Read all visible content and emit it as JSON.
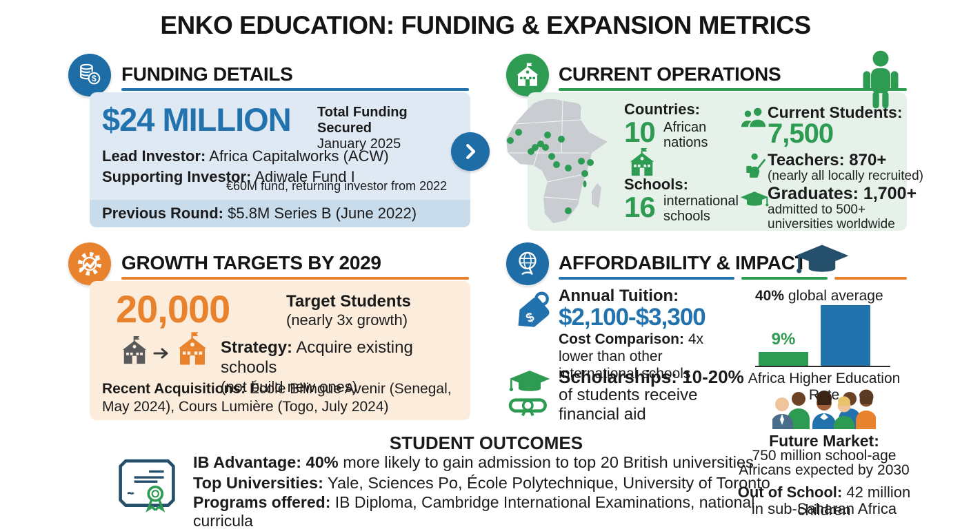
{
  "title": "ENKO EDUCATION: FUNDING & EXPANSION METRICS",
  "funding": {
    "heading": "FUNDING DETAILS",
    "amount": "$24 MILLION",
    "amount_caption_line1": "Total Funding Secured",
    "amount_caption_line2": "January 2025",
    "lead_label": "Lead Investor:",
    "lead_value": " Africa Capitalworks (ACW)",
    "supporting_label": "Supporting Investor:",
    "supporting_value": " Adiwale Fund I",
    "supporting_note": "€60M fund, returning investor from 2022",
    "previous_label": "Previous Round:",
    "previous_value": " $5.8M Series B (June 2022)"
  },
  "operations": {
    "heading": "CURRENT OPERATIONS",
    "countries_label": "Countries:",
    "countries_value": "10",
    "countries_caption": "African nations",
    "schools_label": "Schools:",
    "schools_value": "16",
    "schools_caption": "international schools",
    "students_label": "Current Students:",
    "students_value": "7,500",
    "teachers_label": "Teachers: 870+",
    "teachers_caption": "(nearly all locally recruited)",
    "graduates_label": "Graduates: 1,700+",
    "graduates_caption": "admitted to 500+ universities worldwide"
  },
  "growth": {
    "heading": "GROWTH TARGETS BY 2029",
    "target_value": "20,000",
    "target_label": "Target Students",
    "target_caption": "(nearly 3x growth)",
    "strategy_label": "Strategy:",
    "strategy_value": " Acquire existing schools",
    "strategy_caption": "(not build new ones)",
    "acquisitions_label": "Recent Acquisitions:",
    "acquisitions_value": " École Bilingue Avenir (Senegal, May 2024), Cours Lumière (Togo, July 2024)"
  },
  "affordability": {
    "heading": "AFFORDABILITY & IMPACT",
    "tuition_label": "Annual Tuition:",
    "tuition_value": "$2,100-$3,300",
    "cost_label": "Cost Comparison:",
    "cost_value": " 4x lower than other international schools",
    "scholarships_label": "Scholarships: 10-20%",
    "scholarships_caption": "of students receive financial aid",
    "future_label": "Future Market:",
    "future_line1": "750 million school-age",
    "future_line2": "Africans expected by 2030",
    "outofschool_label": "Out of School:",
    "outofschool_value": " 42 million children",
    "outofschool_line2": "in sub-Saharan Africa"
  },
  "chart_data": {
    "type": "bar",
    "categories": [
      "Africa",
      "Global average"
    ],
    "values": [
      9,
      40
    ],
    "bar_labels": [
      "9%",
      "40%"
    ],
    "top_label_bold": "40%",
    "top_label_rest": " global average",
    "xlabel": "Africa Higher Education Rate",
    "ylim": [
      0,
      40
    ],
    "colors": [
      "#2d9b51",
      "#2272ae"
    ],
    "grid": false,
    "legend": "none"
  },
  "outcomes": {
    "heading": "STUDENT OUTCOMES",
    "ib_label": "IB Advantage: 40%",
    "ib_value": " more likely to gain admission to top 20 British universities",
    "universities_label": "Top Universities:",
    "universities_value": " Yale, Sciences Po, École Polytechnique, University of Toronto",
    "programs_label": "Programs offered:",
    "programs_value": " IB Diploma, Cambridge International Examinations, national curricula"
  },
  "icons": [
    "coins-icon",
    "chevron-right-icon",
    "school-icon",
    "student-backpack-icon",
    "people-icon",
    "teacher-icon",
    "graduation-cap-icon",
    "gear-growth-icon",
    "globe-icon",
    "price-tag-icon",
    "scholarship-icon",
    "certificate-icon",
    "africa-map",
    "students-group-icon",
    "arrow-right-icon"
  ],
  "colors": {
    "blue": "#2272ae",
    "icon_blue": "#1e6da6",
    "navy": "#254f6b",
    "green": "#2d9b51",
    "orange": "#e9822c",
    "panel_blue": "#dfe9f4",
    "panel_blue_dark": "#c9dcec",
    "panel_green": "#e6f1ea",
    "panel_orange": "#fcecdc",
    "map_gray": "#c9cdd2"
  }
}
